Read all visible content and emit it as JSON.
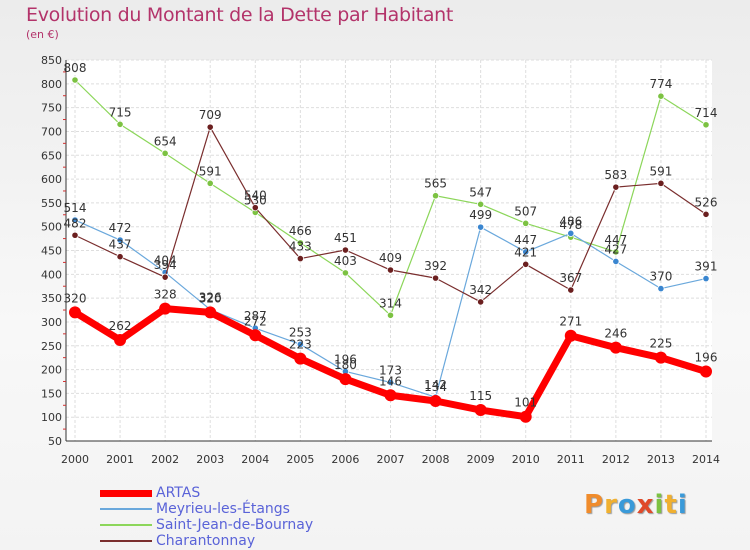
{
  "title": "Evolution du Montant de la Dette par Habitant",
  "subtitle": "(en €)",
  "logo": [
    "P",
    "r",
    "o",
    "x",
    "i",
    "t",
    "i"
  ],
  "logo_colors": [
    "#f08c2c",
    "#f0b030",
    "#3a9ad9",
    "#e04a2a",
    "#7cc242",
    "#f0b030",
    "#3a9ad9"
  ],
  "chart_data": {
    "type": "line",
    "x": [
      "2000",
      "2001",
      "2002",
      "2003",
      "2004",
      "2005",
      "2006",
      "2007",
      "2008",
      "2009",
      "2010",
      "2011",
      "2012",
      "2013",
      "2014"
    ],
    "ylim": [
      50,
      850
    ],
    "yticks": [
      50,
      100,
      150,
      200,
      250,
      300,
      350,
      400,
      450,
      500,
      550,
      600,
      650,
      700,
      750,
      800,
      850
    ],
    "grid": true,
    "legend_position": "bottom-left",
    "series": [
      {
        "name": "Saint-Jean-de-Bournay",
        "color": "#8cd65a",
        "line_width": 1.2,
        "point_color": "#7cc242",
        "values": [
          808,
          715,
          654,
          591,
          530,
          466,
          403,
          314,
          565,
          547,
          507,
          478,
          447,
          774,
          714
        ],
        "labels": [
          "808",
          "715",
          "654",
          "591",
          "530",
          "466",
          "403",
          "314",
          "565",
          "547",
          "507",
          "478",
          "447",
          "774",
          "714"
        ]
      },
      {
        "name": "Meyrieu-les-Étangs",
        "color": "#6aa8dc",
        "line_width": 1.2,
        "point_color": "#3a86d0",
        "values": [
          514,
          472,
          404,
          326,
          287,
          253,
          196,
          173,
          142,
          499,
          447,
          486,
          427,
          370,
          391
        ],
        "labels": [
          "514",
          "472",
          "404",
          "326",
          "287",
          "253",
          "196",
          "173",
          "142",
          "499",
          "447",
          "486",
          "427",
          "370",
          "391"
        ]
      },
      {
        "name": "Charantonnay",
        "color": "#7a2e2e",
        "line_width": 1.2,
        "point_color": "#6b1f1f",
        "values": [
          482,
          437,
          394,
          709,
          540,
          433,
          451,
          409,
          392,
          342,
          421,
          367,
          583,
          591,
          526
        ],
        "labels": [
          "482",
          "437",
          "394",
          "709",
          "540",
          "433",
          "451",
          "409",
          "392",
          "342",
          "421",
          "367",
          "583",
          "591",
          "526"
        ]
      },
      {
        "name": "ARTAS",
        "color": "#ff0000",
        "line_width": 7,
        "point_color": "#ff0000",
        "values": [
          320,
          262,
          328,
          320,
          272,
          223,
          180,
          146,
          134,
          115,
          101,
          271,
          246,
          225,
          196
        ],
        "labels": [
          "320",
          "262",
          "328",
          "320",
          "272",
          "223",
          "180",
          "146",
          "134",
          "115",
          "101",
          "271",
          "246",
          "225",
          "196"
        ]
      }
    ],
    "legend_order": [
      "ARTAS",
      "Meyrieu-les-Étangs",
      "Saint-Jean-de-Bournay",
      "Charantonnay"
    ]
  }
}
